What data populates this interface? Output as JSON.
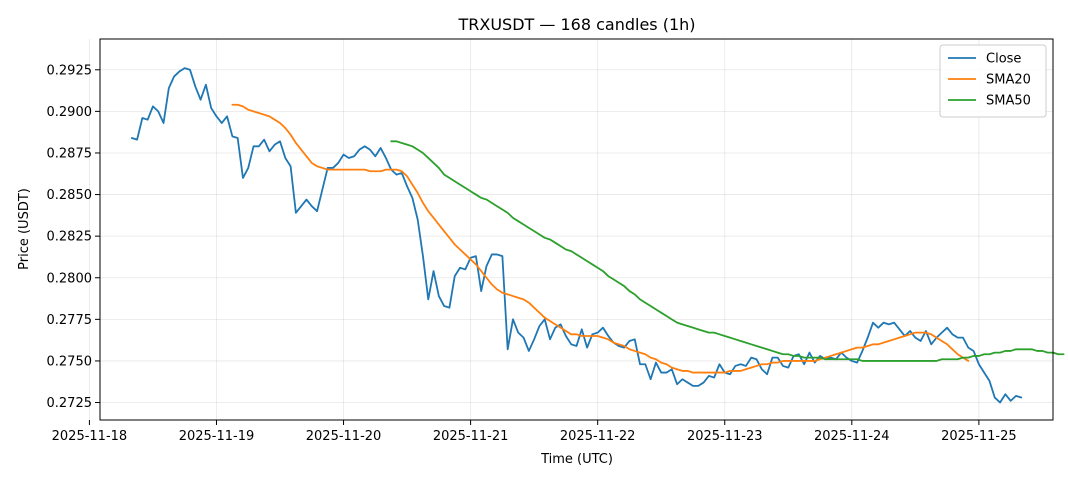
{
  "chart_data": {
    "type": "line",
    "title": "TRXUSDT — 168 candles (1h)",
    "xlabel": "Time (UTC)",
    "ylabel": "Price (USDT)",
    "x_start": "2025-11-18 08:00",
    "x_step": "1h",
    "xlim": [
      "2025-11-18 02:00",
      "2025-11-25 14:00"
    ],
    "ylim": [
      0.27145,
      0.29435
    ],
    "yticks": [
      0.2725,
      0.275,
      0.2775,
      0.28,
      0.2825,
      0.285,
      0.2875,
      0.29,
      0.2925
    ],
    "xticks": [
      "2025-11-18",
      "2025-11-19",
      "2025-11-20",
      "2025-11-21",
      "2025-11-22",
      "2025-11-23",
      "2025-11-24",
      "2025-11-25"
    ],
    "grid": true,
    "legend_position": "top-right",
    "series": [
      {
        "name": "Close",
        "color": "#1f77b4",
        "values": [
          0.2884,
          0.2883,
          0.2896,
          0.2895,
          0.2903,
          0.29,
          0.2893,
          0.2914,
          0.2921,
          0.2924,
          0.2926,
          0.2925,
          0.2915,
          0.2907,
          0.2916,
          0.2902,
          0.2897,
          0.2893,
          0.2897,
          0.2885,
          0.2884,
          0.286,
          0.2866,
          0.2879,
          0.2879,
          0.2883,
          0.2876,
          0.288,
          0.2882,
          0.2872,
          0.2867,
          0.2839,
          0.2843,
          0.2847,
          0.2843,
          0.284,
          0.2853,
          0.2866,
          0.2866,
          0.2869,
          0.2874,
          0.2872,
          0.2873,
          0.2877,
          0.2879,
          0.2877,
          0.2873,
          0.2878,
          0.2872,
          0.2865,
          0.2862,
          0.2863,
          0.2855,
          0.2848,
          0.2835,
          0.2813,
          0.2787,
          0.2804,
          0.2789,
          0.2783,
          0.2782,
          0.2801,
          0.2806,
          0.2805,
          0.2812,
          0.2813,
          0.2792,
          0.2807,
          0.2814,
          0.2814,
          0.2813,
          0.2757,
          0.2775,
          0.2767,
          0.2764,
          0.2756,
          0.2763,
          0.2771,
          0.2775,
          0.2763,
          0.277,
          0.2772,
          0.2765,
          0.276,
          0.2759,
          0.2769,
          0.2758,
          0.2766,
          0.2767,
          0.277,
          0.2765,
          0.2761,
          0.2759,
          0.2758,
          0.2762,
          0.2763,
          0.2748,
          0.2748,
          0.2739,
          0.2749,
          0.2743,
          0.2743,
          0.2745,
          0.2736,
          0.2739,
          0.2737,
          0.2735,
          0.2735,
          0.2737,
          0.2741,
          0.274,
          0.2748,
          0.2743,
          0.2742,
          0.2747,
          0.2748,
          0.2747,
          0.2752,
          0.2751,
          0.2745,
          0.2742,
          0.2752,
          0.2752,
          0.2747,
          0.2746,
          0.2753,
          0.2754,
          0.2748,
          0.2755,
          0.2749,
          0.2753,
          0.2751,
          0.2752,
          0.2751,
          0.2755,
          0.2752,
          0.275,
          0.2749,
          0.2756,
          0.2764,
          0.2773,
          0.277,
          0.2773,
          0.2772,
          0.2773,
          0.2769,
          0.2765,
          0.2768,
          0.2764,
          0.2762,
          0.2768,
          0.276,
          0.2764,
          0.2767,
          0.277,
          0.2766,
          0.2764,
          0.2764,
          0.2758,
          0.2756,
          0.2748,
          0.2743,
          0.2738,
          0.2728,
          0.2725,
          0.273,
          0.2726,
          0.2729,
          0.2728
        ]
      },
      {
        "name": "SMA20",
        "color": "#ff7f0e",
        "start_index": 19,
        "values": [
          0.2904,
          0.2904,
          0.2903,
          0.2901,
          0.29,
          0.2899,
          0.2898,
          0.2897,
          0.2895,
          0.2893,
          0.289,
          0.2886,
          0.2881,
          0.2877,
          0.2873,
          0.2869,
          0.2867,
          0.2866,
          0.2865,
          0.2865,
          0.2865,
          0.2865,
          0.2865,
          0.2865,
          0.2865,
          0.2865,
          0.2864,
          0.2864,
          0.2864,
          0.2865,
          0.2865,
          0.2865,
          0.2864,
          0.2861,
          0.2856,
          0.2851,
          0.2845,
          0.284,
          0.2836,
          0.2832,
          0.2828,
          0.2824,
          0.282,
          0.2817,
          0.2814,
          0.2811,
          0.2808,
          0.2804,
          0.28,
          0.2796,
          0.2793,
          0.2791,
          0.279,
          0.2789,
          0.2788,
          0.2787,
          0.2785,
          0.2782,
          0.2779,
          0.2776,
          0.2774,
          0.2772,
          0.277,
          0.2768,
          0.2766,
          0.2766,
          0.2765,
          0.2765,
          0.2765,
          0.2765,
          0.2764,
          0.2763,
          0.2761,
          0.276,
          0.2759,
          0.2757,
          0.2756,
          0.2755,
          0.2754,
          0.2752,
          0.2751,
          0.2749,
          0.2748,
          0.2746,
          0.2745,
          0.2744,
          0.2744,
          0.2743,
          0.2743,
          0.2743,
          0.2743,
          0.2743,
          0.2743,
          0.2743,
          0.2744,
          0.2744,
          0.2744,
          0.2745,
          0.2746,
          0.2747,
          0.2748,
          0.2748,
          0.2749,
          0.2749,
          0.275,
          0.275,
          0.275,
          0.275,
          0.275,
          0.275,
          0.275,
          0.2751,
          0.2752,
          0.2753,
          0.2754,
          0.2755,
          0.2756,
          0.2757,
          0.2758,
          0.2758,
          0.2759,
          0.276,
          0.276,
          0.2761,
          0.2762,
          0.2763,
          0.2764,
          0.2765,
          0.2766,
          0.2767,
          0.2767,
          0.2767,
          0.2766,
          0.2764,
          0.2762,
          0.276,
          0.2757,
          0.2754,
          0.2752,
          0.275
        ]
      },
      {
        "name": "SMA50",
        "color": "#2ca02c",
        "start_index": 49,
        "values": [
          0.2882,
          0.2882,
          0.2881,
          0.288,
          0.2879,
          0.2877,
          0.2875,
          0.2872,
          0.2869,
          0.2866,
          0.2862,
          0.286,
          0.2858,
          0.2856,
          0.2854,
          0.2852,
          0.285,
          0.2848,
          0.2847,
          0.2845,
          0.2843,
          0.2841,
          0.2839,
          0.2836,
          0.2834,
          0.2832,
          0.283,
          0.2828,
          0.2826,
          0.2824,
          0.2823,
          0.2821,
          0.2819,
          0.2817,
          0.2816,
          0.2814,
          0.2812,
          0.281,
          0.2808,
          0.2806,
          0.2804,
          0.2801,
          0.2799,
          0.2797,
          0.2795,
          0.2792,
          0.279,
          0.2787,
          0.2785,
          0.2783,
          0.2781,
          0.2779,
          0.2777,
          0.2775,
          0.2773,
          0.2772,
          0.2771,
          0.277,
          0.2769,
          0.2768,
          0.2767,
          0.2767,
          0.2766,
          0.2765,
          0.2764,
          0.2763,
          0.2762,
          0.2761,
          0.276,
          0.2759,
          0.2758,
          0.2757,
          0.2756,
          0.2755,
          0.2754,
          0.2754,
          0.2753,
          0.2753,
          0.2752,
          0.2752,
          0.2752,
          0.2752,
          0.2751,
          0.2751,
          0.2751,
          0.2751,
          0.2751,
          0.2751,
          0.2751,
          0.275,
          0.275,
          0.275,
          0.275,
          0.275,
          0.275,
          0.275,
          0.275,
          0.275,
          0.275,
          0.275,
          0.275,
          0.275,
          0.275,
          0.275,
          0.2751,
          0.2751,
          0.2751,
          0.2751,
          0.2752,
          0.2752,
          0.2753,
          0.2753,
          0.2754,
          0.2754,
          0.2755,
          0.2755,
          0.2756,
          0.2756,
          0.2757,
          0.2757,
          0.2757,
          0.2757,
          0.2756,
          0.2756,
          0.2755,
          0.2755,
          0.2754,
          0.2754
        ]
      }
    ]
  }
}
